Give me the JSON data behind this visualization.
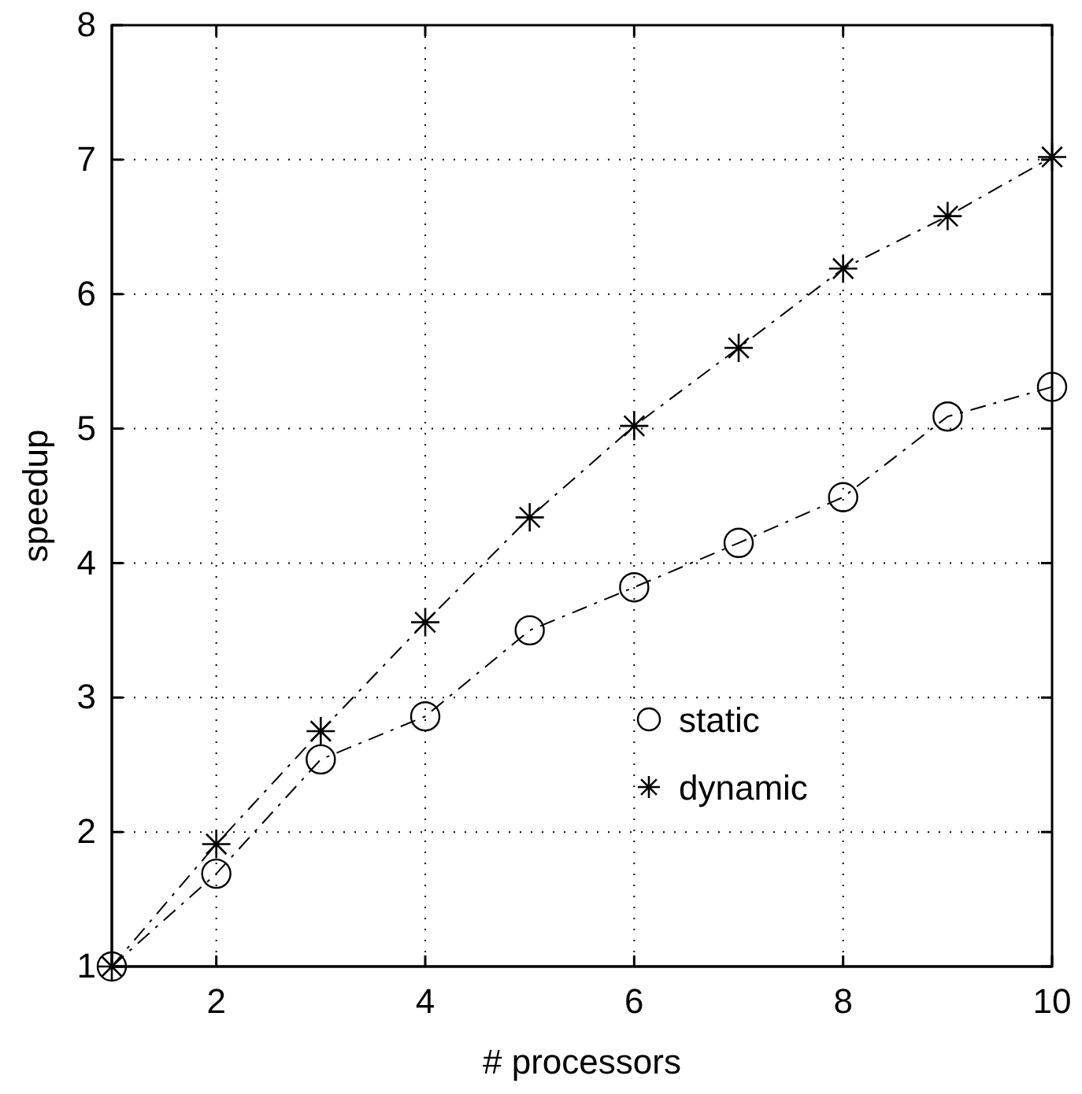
{
  "chart_data": {
    "type": "line",
    "xlabel": "# processors",
    "ylabel": "speedup",
    "x": [
      1,
      2,
      3,
      4,
      5,
      6,
      7,
      8,
      9,
      10
    ],
    "series": [
      {
        "name": "static",
        "color": "#000000",
        "marker": "circle",
        "values": [
          1,
          1.69,
          2.54,
          2.86,
          3.5,
          3.82,
          4.15,
          4.49,
          5.09,
          5.31
        ]
      },
      {
        "name": "dynamic",
        "color": "#000000",
        "marker": "cross",
        "values": [
          1,
          1.91,
          2.75,
          3.56,
          4.34,
          5.02,
          5.6,
          6.19,
          6.58,
          7.02
        ]
      }
    ],
    "xlim": [
      1,
      10
    ],
    "xticks": [
      2,
      4,
      6,
      8,
      10
    ],
    "ylim": [
      1,
      8
    ],
    "yticks": [
      1,
      2,
      3,
      4,
      5,
      6,
      7,
      8
    ],
    "grid": true,
    "legend": "bottom right",
    "line_style": "dashed"
  }
}
